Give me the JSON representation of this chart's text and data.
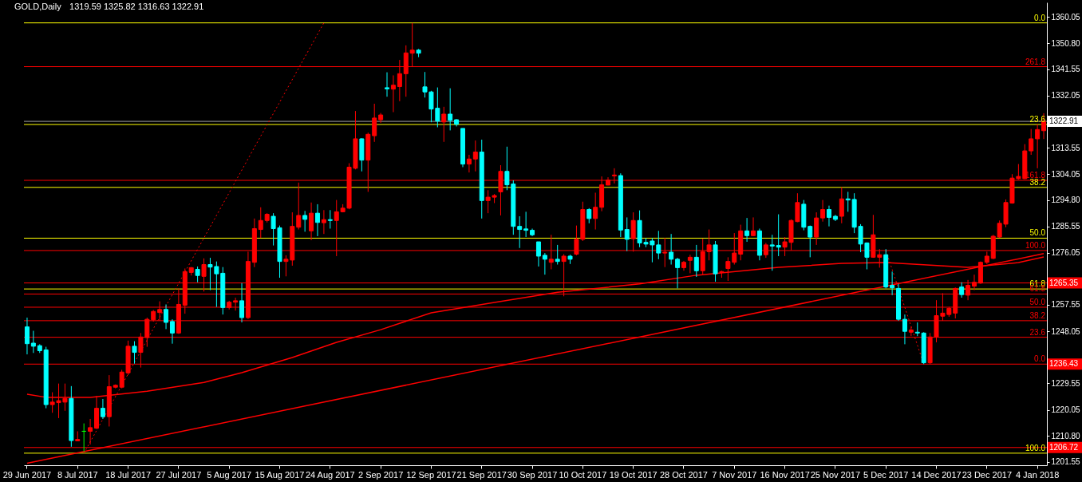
{
  "chart_data": {
    "type": "candlestick",
    "title": "GOLD,Daily",
    "subtitle": "1319.59 1325.82 1316.63 1322.91",
    "categories": [
      "29 Jun 2017",
      null,
      null,
      null,
      null,
      null,
      null,
      null,
      "8 Jul 2017",
      null,
      null,
      null,
      null,
      null,
      null,
      null,
      "18 Jul 2017",
      null,
      null,
      null,
      null,
      null,
      null,
      null,
      "27 Jul 2017",
      null,
      null,
      null,
      null,
      null,
      null,
      null,
      "5 Aug 2017",
      null,
      null,
      null,
      null,
      null,
      null,
      null,
      "15 Aug 2017",
      null,
      null,
      null,
      null,
      null,
      null,
      null,
      "24 Aug 2017",
      null,
      null,
      null,
      null,
      null,
      null,
      null,
      "2 Sep 2017",
      null,
      null,
      null,
      null,
      null,
      null,
      null,
      "12 Sep 2017",
      null,
      null,
      null,
      null,
      null,
      null,
      null,
      "21 Sep 2017",
      null,
      null,
      null,
      null,
      null,
      null,
      null,
      "30 Sep 2017",
      null,
      null,
      null,
      null,
      null,
      null,
      null,
      "10 Oct 2017",
      null,
      null,
      null,
      null,
      null,
      null,
      null,
      "19 Oct 2017",
      null,
      null,
      null,
      null,
      null,
      null,
      null,
      "28 Oct 2017",
      null,
      null,
      null,
      null,
      null,
      null,
      null,
      "7 Nov 2017",
      null,
      null,
      null,
      null,
      null,
      null,
      null,
      "16 Nov 2017",
      null,
      null,
      null,
      null,
      null,
      null,
      null,
      "25 Nov 2017",
      null,
      null,
      null,
      null,
      null,
      null,
      null,
      "5 Dec 2017",
      null,
      null,
      null,
      null,
      null,
      null,
      null,
      "14 Dec 2017",
      null,
      null,
      null,
      null,
      null,
      null,
      null,
      "23 Dec 2017",
      null,
      null,
      null,
      null,
      null,
      null,
      null,
      "4 Jan 2018",
      null
    ],
    "ohlc": [
      [
        1249.7,
        1253.0,
        1239.9,
        1243.7
      ],
      [
        1243.9,
        1248.3,
        1240.4,
        1242.8
      ],
      [
        1243.0,
        1243.5,
        1240.4,
        1241.2
      ],
      [
        1241.5,
        1242.6,
        1220.7,
        1222.0
      ],
      [
        1222.0,
        1226.4,
        1219.1,
        1222.9
      ],
      [
        1222.7,
        1229.5,
        1217.2,
        1223.4
      ],
      [
        1222.9,
        1229.5,
        1219.8,
        1224.2
      ],
      [
        1224.2,
        1228.6,
        1207.0,
        1209.2
      ],
      [
        1209.1,
        1212.5,
        1209.0,
        1209.6
      ],
      [
        1212.5,
        1215.3,
        1205.2,
        1212.5
      ],
      [
        1212.5,
        1216.9,
        1207.8,
        1213.8
      ],
      [
        1213.6,
        1225.1,
        1213.3,
        1220.7
      ],
      [
        1220.7,
        1224.0,
        1216.9,
        1217.7
      ],
      [
        1217.7,
        1232.5,
        1214.2,
        1228.4
      ],
      [
        1228.2,
        1229.2,
        1227.8,
        1228.9
      ],
      [
        1228.2,
        1234.4,
        1227.8,
        1233.6
      ],
      [
        1233.3,
        1244.8,
        1232.5,
        1242.8
      ],
      [
        1242.8,
        1244.6,
        1236.6,
        1240.6
      ],
      [
        1240.6,
        1247.5,
        1235.2,
        1246.1
      ],
      [
        1245.9,
        1253.0,
        1242.6,
        1252.4
      ],
      [
        1252.2,
        1255.7,
        1251.6,
        1255.2
      ],
      [
        1254.8,
        1258.8,
        1251.9,
        1255.9
      ],
      [
        1255.9,
        1257.7,
        1248.9,
        1251.3
      ],
      [
        1251.6,
        1252.4,
        1243.7,
        1247.5
      ],
      [
        1247.5,
        1263.4,
        1247.2,
        1257.7
      ],
      [
        1257.4,
        1270.5,
        1254.4,
        1269.4
      ],
      [
        1269.1,
        1271.0,
        1268.0,
        1270.8
      ],
      [
        1270.2,
        1271.2,
        1265.6,
        1268.0
      ],
      [
        1267.7,
        1274.1,
        1262.3,
        1271.9
      ],
      [
        1271.9,
        1274.3,
        1262.8,
        1271.0
      ],
      [
        1271.2,
        1273.0,
        1256.8,
        1268.6
      ],
      [
        1268.8,
        1271.0,
        1254.1,
        1256.6
      ],
      [
        1256.6,
        1259.0,
        1255.9,
        1258.5
      ],
      [
        1258.5,
        1260.1,
        1255.5,
        1259.0
      ],
      [
        1259.0,
        1265.3,
        1251.3,
        1253.0
      ],
      [
        1253.0,
        1276.5,
        1252.5,
        1273.0
      ],
      [
        1272.7,
        1288.3,
        1271.0,
        1284.7
      ],
      [
        1284.4,
        1292.3,
        1281.4,
        1287.6
      ],
      [
        1287.6,
        1290.2,
        1286.9,
        1289.8
      ],
      [
        1289.1,
        1290.2,
        1278.7,
        1284.7
      ],
      [
        1285.0,
        1285.8,
        1267.2,
        1273.0
      ],
      [
        1273.0,
        1275.2,
        1267.7,
        1273.8
      ],
      [
        1273.5,
        1290.5,
        1271.5,
        1285.5
      ],
      [
        1285.2,
        1301.1,
        1284.4,
        1289.4
      ],
      [
        1289.4,
        1291.0,
        1283.6,
        1288.0
      ],
      [
        1283.9,
        1294.0,
        1280.6,
        1290.2
      ],
      [
        1290.2,
        1293.4,
        1282.0,
        1286.9
      ],
      [
        1286.8,
        1291.3,
        1282.8,
        1287.9
      ],
      [
        1287.9,
        1291.3,
        1284.7,
        1287.6
      ],
      [
        1287.6,
        1294.9,
        1274.9,
        1290.7
      ],
      [
        1290.7,
        1293.4,
        1290.5,
        1292.0
      ],
      [
        1292.0,
        1308.0,
        1291.6,
        1306.6
      ],
      [
        1306.2,
        1326.6,
        1305.8,
        1316.7
      ],
      [
        1316.7,
        1316.9,
        1305.1,
        1309.1
      ],
      [
        1309.1,
        1318.9,
        1297.8,
        1318.3
      ],
      [
        1317.8,
        1329.2,
        1315.6,
        1324.1
      ],
      [
        1323.5,
        1325.9,
        1322.4,
        1325.2
      ],
      [
        1334.9,
        1340.4,
        1331.7,
        1334.5
      ],
      [
        1334.4,
        1339.3,
        1326.2,
        1335.8
      ],
      [
        1335.3,
        1344.8,
        1330.1,
        1339.9
      ],
      [
        1339.9,
        1350.0,
        1331.7,
        1347.3
      ],
      [
        1347.2,
        1357.96,
        1342.3,
        1348.3
      ],
      [
        1348.3,
        1348.7,
        1345.8,
        1347.2
      ],
      [
        1335.2,
        1340.5,
        1331.4,
        1333.4
      ],
      [
        1333.4,
        1333.8,
        1322.6,
        1327.3
      ],
      [
        1327.6,
        1335.0,
        1320.8,
        1323.0
      ],
      [
        1322.7,
        1328.1,
        1315.6,
        1325.5
      ],
      [
        1325.5,
        1334.7,
        1319.7,
        1323.3
      ],
      [
        1323.5,
        1323.7,
        1321.1,
        1321.9
      ],
      [
        1320.4,
        1320.4,
        1306.6,
        1307.7
      ],
      [
        1307.7,
        1311.0,
        1304.7,
        1309.5
      ],
      [
        1309.5,
        1316.1,
        1305.1,
        1312.0
      ],
      [
        1312.0,
        1316.4,
        1288.3,
        1294.7
      ],
      [
        1294.7,
        1298.4,
        1290.2,
        1295.9
      ],
      [
        1295.9,
        1297.0,
        1293.8,
        1296.5
      ],
      [
        1297.8,
        1307.3,
        1289.4,
        1305.1
      ],
      [
        1305.1,
        1313.9,
        1298.4,
        1300.3
      ],
      [
        1300.6,
        1301.9,
        1282.5,
        1285.5
      ],
      [
        1285.5,
        1289.1,
        1277.8,
        1284.4
      ],
      [
        1284.6,
        1290.7,
        1281.7,
        1284.1
      ],
      [
        1284.1,
        1284.7,
        1282.0,
        1282.5
      ],
      [
        1280.0,
        1280.0,
        1271.2,
        1274.9
      ],
      [
        1275.2,
        1276.0,
        1268.3,
        1273.8
      ],
      [
        1272.7,
        1282.5,
        1270.2,
        1273.8
      ],
      [
        1273.8,
        1278.9,
        1271.9,
        1273.0
      ],
      [
        1273.0,
        1275.6,
        1260.6,
        1274.9
      ],
      [
        1274.9,
        1275.4,
        1272.1,
        1273.8
      ],
      [
        1275.6,
        1285.8,
        1275.2,
        1280.9
      ],
      [
        1280.9,
        1294.3,
        1280.3,
        1291.5
      ],
      [
        1291.5,
        1292.0,
        1286.6,
        1288.3
      ],
      [
        1288.3,
        1297.5,
        1284.4,
        1292.3
      ],
      [
        1292.3,
        1303.3,
        1290.9,
        1300.3
      ],
      [
        1300.2,
        1303.0,
        1300.2,
        1302.0
      ],
      [
        1303.5,
        1306.2,
        1300.8,
        1303.8
      ],
      [
        1303.6,
        1304.4,
        1281.7,
        1284.2
      ],
      [
        1284.4,
        1288.7,
        1276.7,
        1280.9
      ],
      [
        1281.1,
        1290.5,
        1276.5,
        1287.6
      ],
      [
        1287.6,
        1291.2,
        1278.1,
        1279.6
      ],
      [
        1279.8,
        1281.4,
        1278.1,
        1279.2
      ],
      [
        1280.3,
        1281.4,
        1272.7,
        1278.9
      ],
      [
        1278.9,
        1283.9,
        1273.8,
        1276.0
      ],
      [
        1276.0,
        1281.4,
        1271.0,
        1276.3
      ],
      [
        1276.3,
        1282.8,
        1271.9,
        1273.8
      ],
      [
        1273.8,
        1274.3,
        1263.4,
        1270.8
      ],
      [
        1270.8,
        1273.2,
        1269.7,
        1272.7
      ],
      [
        1273.4,
        1275.4,
        1268.8,
        1274.5
      ],
      [
        1274.5,
        1278.9,
        1267.5,
        1269.7
      ],
      [
        1269.7,
        1281.1,
        1268.3,
        1276.5
      ],
      [
        1276.5,
        1284.4,
        1273.4,
        1278.9
      ],
      [
        1278.9,
        1280.3,
        1265.8,
        1268.6
      ],
      [
        1269.1,
        1269.7,
        1267.2,
        1269.4
      ],
      [
        1270.5,
        1274.5,
        1266.1,
        1273.0
      ],
      [
        1272.7,
        1283.1,
        1271.9,
        1276.0
      ],
      [
        1275.6,
        1286.1,
        1273.4,
        1283.9
      ],
      [
        1283.9,
        1288.5,
        1280.0,
        1282.2
      ],
      [
        1282.2,
        1288.7,
        1282.0,
        1283.9
      ],
      [
        1283.9,
        1284.7,
        1273.4,
        1275.2
      ],
      [
        1275.4,
        1279.6,
        1274.3,
        1278.9
      ],
      [
        1278.9,
        1282.5,
        1269.7,
        1278.5
      ],
      [
        1278.7,
        1289.8,
        1274.9,
        1278.1
      ],
      [
        1278.1,
        1281.7,
        1274.9,
        1280.0
      ],
      [
        1279.8,
        1288.0,
        1277.0,
        1287.6
      ],
      [
        1287.2,
        1297.3,
        1287.0,
        1294.0
      ],
      [
        1293.4,
        1294.9,
        1284.1,
        1285.2
      ],
      [
        1285.5,
        1285.8,
        1274.5,
        1281.7
      ],
      [
        1281.7,
        1290.5,
        1278.9,
        1288.5
      ],
      [
        1288.5,
        1294.9,
        1287.2,
        1291.5
      ],
      [
        1291.5,
        1292.9,
        1285.5,
        1288.7
      ],
      [
        1289.1,
        1289.6,
        1287.4,
        1288.0
      ],
      [
        1289.1,
        1299.5,
        1286.6,
        1295.3
      ],
      [
        1295.3,
        1297.8,
        1290.7,
        1294.9
      ],
      [
        1295.1,
        1297.3,
        1283.1,
        1285.2
      ],
      [
        1285.5,
        1286.3,
        1276.3,
        1279.2
      ],
      [
        1279.6,
        1279.8,
        1270.2,
        1274.5
      ],
      [
        1274.5,
        1289.6,
        1274.3,
        1282.5
      ],
      [
        1274.5,
        1277.4,
        1270.8,
        1275.4
      ],
      [
        1275.4,
        1277.4,
        1263.4,
        1263.9
      ],
      [
        1264.5,
        1269.4,
        1261.0,
        1263.6
      ],
      [
        1263.4,
        1265.0,
        1251.9,
        1252.4
      ],
      [
        1252.4,
        1254.1,
        1243.5,
        1248.1
      ],
      [
        1247.8,
        1249.7,
        1246.4,
        1248.6
      ],
      [
        1247.8,
        1251.3,
        1246.4,
        1247.5
      ],
      [
        1247.5,
        1247.8,
        1236.43,
        1236.9
      ],
      [
        1236.9,
        1247.5,
        1236.43,
        1246.1
      ],
      [
        1246.1,
        1259.2,
        1244.2,
        1253.7
      ],
      [
        1253.5,
        1261.7,
        1251.9,
        1254.6
      ],
      [
        1254.1,
        1256.8,
        1253.3,
        1256.3
      ],
      [
        1254.6,
        1263.7,
        1252.7,
        1263.4
      ],
      [
        1263.9,
        1265.6,
        1260.1,
        1261.2
      ],
      [
        1261.0,
        1266.4,
        1259.2,
        1264.5
      ],
      [
        1264.2,
        1268.3,
        1262.8,
        1265.6
      ],
      [
        1265.3,
        1273.0,
        1265.0,
        1272.7
      ],
      [
        1272.7,
        1276.5,
        1272.1,
        1274.9
      ],
      [
        1274.1,
        1282.5,
        1273.8,
        1282.0
      ],
      [
        1281.7,
        1287.6,
        1281.4,
        1286.6
      ],
      [
        1286.3,
        1295.1,
        1285.2,
        1294.0
      ],
      [
        1293.8,
        1304.1,
        1293.6,
        1302.7
      ],
      [
        1302.5,
        1307.7,
        1302.2,
        1303.3
      ],
      [
        1302.5,
        1314.8,
        1302.3,
        1312.4
      ],
      [
        1312.4,
        1320.2,
        1311.0,
        1316.7
      ],
      [
        1316.7,
        1321.9,
        1306.2,
        1320.0
      ],
      [
        1319.59,
        1325.82,
        1316.63,
        1322.91
      ]
    ],
    "colors": [
      "#00ffff",
      "#00ffff",
      "#00ffff",
      "#00ffff",
      "#ff0000",
      "#ff0000",
      "#ff0000",
      "#00ffff",
      "#ff0000",
      "#00ff00",
      "#ff0000",
      "#ff0000",
      "#00ffff",
      "#ff0000",
      "#ff0000",
      "#ff0000",
      "#ff0000",
      "#00ffff",
      "#ff0000",
      "#ff0000",
      "#ff0000",
      "#ff0000",
      "#00ffff",
      "#00ffff",
      "#ff0000",
      "#ff0000",
      "#ff0000",
      "#00ffff",
      "#ff0000",
      "#00ffff",
      "#00ffff",
      "#00ffff",
      "#ff0000",
      "#ff0000",
      "#00ffff",
      "#ff0000",
      "#ff0000",
      "#ff0000",
      "#ff0000",
      "#00ffff",
      "#00ffff",
      "#ff0000",
      "#ff0000",
      "#ff0000",
      "#00ffff",
      "#ff0000",
      "#00ffff",
      "#ff0000",
      "#00ffff",
      "#ff0000",
      "#ff0000",
      "#ff0000",
      "#ff0000",
      "#00ffff",
      "#ff0000",
      "#ff0000",
      "#ff0000",
      "#00ffff",
      "#ff0000",
      "#ff0000",
      "#ff0000",
      "#ff0000",
      "#00ffff",
      "#00ffff",
      "#00ffff",
      "#00ffff",
      "#ff0000",
      "#00ffff",
      "#00ffff",
      "#00ffff",
      "#ff0000",
      "#ff0000",
      "#00ffff",
      "#ff0000",
      "#ff0000",
      "#ff0000",
      "#00ffff",
      "#00ffff",
      "#00ffff",
      "#00ffff",
      "#00ffff",
      "#00ffff",
      "#00ffff",
      "#ff0000",
      "#00ffff",
      "#ff0000",
      "#00ffff",
      "#ff0000",
      "#ff0000",
      "#00ffff",
      "#ff0000",
      "#ff0000",
      "#ff0000",
      "#ff0000",
      "#00ffff",
      "#00ffff",
      "#ff0000",
      "#00ffff",
      "#00ffff",
      "#00ffff",
      "#00ffff",
      "#ff0000",
      "#00ffff",
      "#00ffff",
      "#ff0000",
      "#ff0000",
      "#00ffff",
      "#ff0000",
      "#ff0000",
      "#00ffff",
      "#ff0000",
      "#ff0000",
      "#ff0000",
      "#ff0000",
      "#00ffff",
      "#ff0000",
      "#00ffff",
      "#ff0000",
      "#00ffff",
      "#00ffff",
      "#ff0000",
      "#ff0000",
      "#ff0000",
      "#00ffff",
      "#00ffff",
      "#ff0000",
      "#ff0000",
      "#00ffff",
      "#00ffff",
      "#ff0000",
      "#00ffff",
      "#00ffff",
      "#00ffff",
      "#00ffff",
      "#ff0000",
      "#ff0000",
      "#00ffff",
      "#00ffff",
      "#00ffff",
      "#00ffff",
      "#ff0000",
      "#00ffff",
      "#00ffff",
      "#ff0000",
      "#ff0000",
      "#ff0000",
      "#ff0000",
      "#ff0000",
      "#00ffff",
      "#ff0000",
      "#ff0000",
      "#ff0000",
      "#ff0000",
      "#ff0000",
      "#ff0000",
      "#ff0000",
      "#ff0000",
      "#ff0000",
      "#ff0000",
      "#ff0000",
      "#ff0000",
      "#ff0000"
    ],
    "series": [
      {
        "type": "line",
        "color": "#ff0000",
        "line_style": "solid",
        "values": [
          1225.7,
          null,
          null,
          1224.6,
          null,
          null,
          null,
          null,
          null,
          null,
          1224.6,
          null,
          null,
          null,
          null,
          null,
          null,
          null,
          null,
          1226.8,
          null,
          null,
          null,
          null,
          null,
          null,
          null,
          null,
          1229.9,
          null,
          null,
          null,
          null,
          null,
          1233.4,
          null,
          null,
          null,
          null,
          null,
          null,
          null,
          1238.8,
          null,
          null,
          null,
          null,
          null,
          null,
          1244.2,
          null,
          null,
          null,
          null,
          null,
          null,
          1248.7,
          null,
          null,
          null,
          null,
          null,
          null,
          null,
          1254.7,
          null,
          null,
          null,
          null,
          null,
          null,
          null,
          null,
          null,
          1258.4,
          null,
          null,
          null,
          null,
          null,
          null,
          null,
          null,
          null,
          1262.0,
          null,
          null,
          null,
          null,
          null,
          null,
          null,
          null,
          null,
          null,
          null,
          null,
          1265.0,
          null,
          null,
          null,
          null,
          null,
          null,
          null,
          null,
          1268.1,
          null,
          null,
          null,
          null,
          null,
          null,
          null,
          null,
          null,
          null,
          null,
          null,
          1270.9,
          null,
          null,
          null,
          null,
          null,
          null,
          null,
          null,
          null,
          1272.3,
          null,
          null,
          null,
          null,
          null,
          null,
          1272.6,
          null,
          null,
          null,
          null,
          null,
          null,
          null,
          null,
          null,
          null,
          null,
          null,
          1270.9,
          null,
          null,
          null,
          null,
          null,
          null,
          null,
          1272.6,
          null,
          null,
          null,
          1274.6
        ]
      },
      {
        "type": "line",
        "color": "#ff0000",
        "line_style": "solid",
        "values": [
          1201.1,
          null,
          null,
          null,
          null,
          null,
          null,
          null,
          null,
          null,
          null,
          null,
          null,
          null,
          null,
          null,
          null,
          null,
          null,
          null,
          null,
          null,
          null,
          null,
          null,
          null,
          null,
          null,
          null,
          null,
          null,
          null,
          null,
          null,
          null,
          null,
          null,
          null,
          null,
          null,
          null,
          null,
          null,
          null,
          null,
          null,
          null,
          null,
          null,
          null,
          null,
          null,
          null,
          null,
          null,
          null,
          null,
          null,
          null,
          null,
          null,
          null,
          null,
          null,
          null,
          null,
          null,
          null,
          null,
          null,
          null,
          null,
          null,
          null,
          null,
          null,
          null,
          null,
          null,
          null,
          null,
          null,
          null,
          null,
          null,
          null,
          null,
          null,
          null,
          null,
          null,
          null,
          null,
          null,
          null,
          null,
          null,
          null,
          null,
          null,
          null,
          null,
          null,
          null,
          null,
          null,
          null,
          null,
          null,
          null,
          null,
          null,
          null,
          null,
          null,
          null,
          null,
          null,
          null,
          null,
          null,
          null,
          null,
          null,
          null,
          null,
          null,
          null,
          null,
          null,
          null,
          null,
          null,
          null,
          null,
          null,
          null,
          null,
          null,
          null,
          null,
          null,
          null,
          null,
          null,
          null,
          null,
          null,
          null,
          null,
          null,
          null,
          null,
          null,
          null,
          null,
          null,
          null,
          null,
          null,
          null,
          1275.8
        ]
      },
      {
        "type": "line",
        "color": "#ff0000",
        "line_style": "dotted",
        "values": [
          null,
          null,
          null,
          null,
          null,
          null,
          null,
          null,
          null,
          1204.7,
          null,
          null,
          null,
          null,
          null,
          null,
          null,
          null,
          null,
          null,
          null,
          null,
          null,
          null,
          null,
          null,
          null,
          null,
          null,
          null,
          null,
          null,
          null,
          null,
          null,
          null,
          null,
          null,
          null,
          null,
          null,
          null,
          null,
          null,
          null,
          null,
          null,
          1358.0,
          null,
          null,
          null,
          null,
          null,
          null,
          null,
          null,
          null,
          null,
          null,
          null,
          null,
          null,
          null,
          null,
          null,
          null,
          null,
          null,
          null,
          null,
          null,
          null,
          null,
          null,
          null,
          null,
          null,
          null,
          null,
          null,
          null,
          null,
          null,
          null,
          null,
          null,
          null,
          null,
          null,
          null,
          null,
          null,
          null,
          null,
          null,
          null,
          null,
          null,
          null,
          null,
          null,
          null,
          null,
          null,
          null,
          null,
          null,
          null,
          null,
          null,
          null,
          null,
          null,
          null,
          null,
          null,
          null,
          null,
          null,
          null,
          null,
          null,
          null,
          null,
          null,
          null,
          null,
          null,
          null,
          null,
          null,
          null,
          null,
          null,
          null,
          null,
          null,
          null,
          null,
          null,
          null,
          null,
          null,
          null,
          null,
          null,
          null,
          null,
          null,
          null,
          null,
          null,
          null,
          null,
          null,
          null,
          null,
          null,
          null,
          null,
          null,
          null
        ]
      },
      {
        "type": "line",
        "color": "#ff0000",
        "line_style": "dotted",
        "values": [
          null,
          null,
          null,
          null,
          null,
          null,
          null,
          null,
          null,
          null,
          null,
          null,
          null,
          null,
          null,
          null,
          null,
          null,
          null,
          null,
          null,
          null,
          null,
          null,
          null,
          null,
          null,
          null,
          null,
          null,
          null,
          null,
          null,
          null,
          null,
          null,
          null,
          null,
          null,
          null,
          null,
          null,
          null,
          null,
          null,
          null,
          null,
          null,
          null,
          null,
          null,
          null,
          null,
          null,
          null,
          null,
          null,
          null,
          null,
          null,
          null,
          null,
          null,
          null,
          null,
          null,
          null,
          null,
          null,
          null,
          null,
          null,
          null,
          null,
          null,
          null,
          null,
          null,
          null,
          null,
          null,
          null,
          null,
          null,
          null,
          null,
          null,
          null,
          null,
          null,
          null,
          null,
          null,
          null,
          null,
          null,
          null,
          null,
          null,
          null,
          null,
          null,
          null,
          null,
          null,
          null,
          null,
          null,
          null,
          null,
          null,
          null,
          null,
          null,
          null,
          null,
          null,
          null,
          null,
          null,
          null,
          null,
          null,
          null,
          null,
          null,
          null,
          null,
          null,
          null,
          null,
          null,
          null,
          null,
          null,
          null,
          1276.9,
          null,
          null,
          null,
          null,
          null,
          1236.4,
          null,
          null,
          null,
          null,
          null,
          null,
          null,
          null,
          null,
          null,
          null,
          null,
          null,
          null,
          null,
          null,
          null,
          null,
          null
        ]
      }
    ],
    "ref_lines": [
      {
        "axis": "y",
        "value": 1358.0,
        "color": "#ffff00"
      },
      {
        "axis": "y",
        "value": 1321.8,
        "color": "#ffff00"
      },
      {
        "axis": "y",
        "value": 1299.4,
        "color": "#ffff00"
      },
      {
        "axis": "y",
        "value": 1281.3,
        "color": "#ffff00"
      },
      {
        "axis": "y",
        "value": 1263.2,
        "color": "#ffff00"
      },
      {
        "axis": "y",
        "value": 1204.7,
        "color": "#ffff00"
      },
      {
        "axis": "y",
        "value": 1342.4,
        "color": "#ff0000"
      },
      {
        "axis": "y",
        "value": 1301.9,
        "color": "#ff0000"
      },
      {
        "axis": "y",
        "value": 1276.9,
        "color": "#ff0000"
      },
      {
        "axis": "y",
        "value": 1261.4,
        "color": "#ff0000"
      },
      {
        "axis": "y",
        "value": 1256.7,
        "color": "#ff0000"
      },
      {
        "axis": "y",
        "value": 1251.9,
        "color": "#ff0000"
      },
      {
        "axis": "y",
        "value": 1246.0,
        "color": "#ff0000"
      },
      {
        "axis": "y",
        "value": 1322.91,
        "label": "1322.91",
        "color": "#a0a0a0"
      },
      {
        "axis": "y",
        "value": 1265.35,
        "label": "1265.35",
        "color": "#ff0000"
      },
      {
        "axis": "y",
        "value": 1236.43,
        "label": "1236.43",
        "color": "#ff0000"
      },
      {
        "axis": "y",
        "value": 1206.72,
        "label": "1206.72",
        "color": "#ff0000"
      }
    ],
    "annotations": [
      {
        "text": "0.0",
        "y": 1358.0
      },
      {
        "text": "23.6",
        "y": 1321.8
      },
      {
        "text": "38.2",
        "y": 1299.4
      },
      {
        "text": "50.0",
        "y": 1281.3
      },
      {
        "text": "61.8",
        "y": 1263.2
      },
      {
        "text": "100.0",
        "y": 1204.7
      },
      {
        "text": "261.8",
        "y": 1342.4
      },
      {
        "text": "161.8",
        "y": 1301.9
      },
      {
        "text": "100.0",
        "y": 1276.9
      },
      {
        "text": "61.8",
        "y": 1261.4
      },
      {
        "text": "50.0",
        "y": 1256.7
      },
      {
        "text": "38.2",
        "y": 1251.9
      },
      {
        "text": "23.6",
        "y": 1246.0
      },
      {
        "text": "0.0",
        "y": 1236.43
      }
    ],
    "ylim": [
      1200.4,
      1365.3
    ],
    "yticks": [
      1360.05,
      {
        "value": 1350.8,
        "label": "1350.80"
      },
      1341.55,
      1332.05,
      1313.55,
      1304.05,
      {
        "value": 1294.8,
        "label": "1294.80"
      },
      1285.55,
      1276.05,
      1257.55,
      1248.05,
      1229.55,
      1220.05,
      {
        "value": 1210.8,
        "label": "1210.80"
      },
      1201.55
    ]
  }
}
